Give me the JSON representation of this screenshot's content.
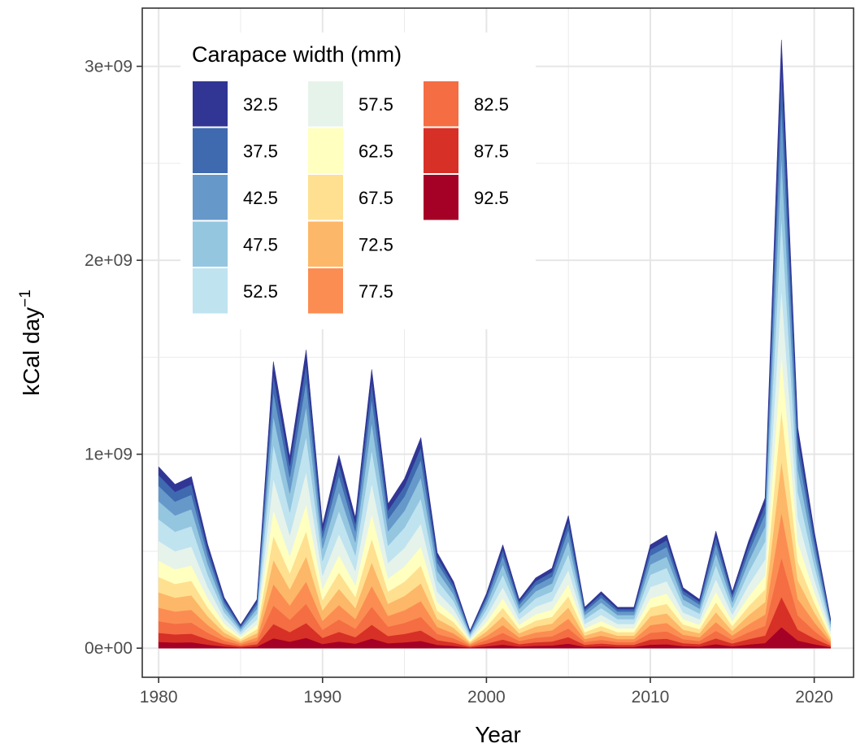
{
  "chart_data": {
    "type": "area",
    "stacked": true,
    "title": "",
    "xlabel": "Year",
    "ylabel": "kCal day",
    "ylabel_superscript": "−1",
    "xlim": [
      1979,
      2022.4
    ],
    "ylim": [
      -150000000.0,
      3300000000.0
    ],
    "x_ticks": [
      1980,
      1990,
      2000,
      2010,
      2020
    ],
    "x_tick_labels": [
      "1980",
      "1990",
      "2000",
      "2010",
      "2020"
    ],
    "y_ticks": [
      0,
      1000000000,
      2000000000,
      3000000000
    ],
    "y_tick_labels": [
      "0e+00",
      "1e+09",
      "2e+09",
      "3e+09"
    ],
    "grid": true,
    "legend": {
      "title": "Carapace width (mm)",
      "placement": "top-left",
      "columns": 3
    },
    "x": [
      1980,
      1981,
      1982,
      1983,
      1984,
      1985,
      1986,
      1987,
      1988,
      1989,
      1990,
      1991,
      1992,
      1993,
      1994,
      1995,
      1996,
      1997,
      1998,
      1999,
      2000,
      2001,
      2002,
      2003,
      2004,
      2005,
      2006,
      2007,
      2008,
      2009,
      2010,
      2011,
      2012,
      2013,
      2014,
      2015,
      2016,
      2017,
      2018,
      2019,
      2020,
      2021
    ],
    "totals": [
      0.93,
      0.84,
      0.88,
      0.53,
      0.26,
      0.12,
      0.25,
      1.47,
      0.98,
      1.53,
      0.63,
      0.99,
      0.67,
      1.43,
      0.74,
      0.87,
      1.08,
      0.49,
      0.34,
      0.09,
      0.28,
      0.53,
      0.25,
      0.36,
      0.41,
      0.68,
      0.21,
      0.29,
      0.21,
      0.21,
      0.53,
      0.58,
      0.31,
      0.25,
      0.6,
      0.29,
      0.55,
      0.77,
      3.12,
      1.13,
      0.6,
      0.15
    ],
    "series": [
      {
        "name": "92.5",
        "color": "#A50026",
        "share": [
          0.035,
          0.035,
          0.035,
          0.035,
          0.035,
          0.035,
          0.035,
          0.035,
          0.035,
          0.035,
          0.035,
          0.035,
          0.035,
          0.035,
          0.035,
          0.035,
          0.035,
          0.035,
          0.035,
          0.035,
          0.035,
          0.035,
          0.035,
          0.035,
          0.035,
          0.035,
          0.035,
          0.035,
          0.035,
          0.035,
          0.035,
          0.035,
          0.035,
          0.035,
          0.035,
          0.035,
          0.035,
          0.035,
          0.035,
          0.035,
          0.035,
          0.035
        ]
      },
      {
        "name": "87.5",
        "color": "#D73027",
        "share": [
          0.05,
          0.05,
          0.05,
          0.05,
          0.05,
          0.05,
          0.05,
          0.05,
          0.05,
          0.05,
          0.05,
          0.05,
          0.05,
          0.05,
          0.05,
          0.05,
          0.05,
          0.05,
          0.05,
          0.05,
          0.05,
          0.05,
          0.05,
          0.05,
          0.05,
          0.05,
          0.05,
          0.05,
          0.05,
          0.05,
          0.05,
          0.05,
          0.05,
          0.05,
          0.05,
          0.05,
          0.05,
          0.05,
          0.05,
          0.05,
          0.05,
          0.05
        ]
      },
      {
        "name": "82.5",
        "color": "#F46D43",
        "share": [
          0.065,
          0.065,
          0.065,
          0.065,
          0.065,
          0.065,
          0.065,
          0.065,
          0.065,
          0.065,
          0.065,
          0.065,
          0.065,
          0.065,
          0.065,
          0.065,
          0.065,
          0.065,
          0.065,
          0.065,
          0.065,
          0.065,
          0.065,
          0.065,
          0.065,
          0.065,
          0.065,
          0.065,
          0.065,
          0.065,
          0.065,
          0.065,
          0.065,
          0.065,
          0.065,
          0.065,
          0.065,
          0.065,
          0.065,
          0.065,
          0.065,
          0.065
        ]
      },
      {
        "name": "77.5",
        "color": "#FB8D52",
        "share": [
          0.075,
          0.075,
          0.075,
          0.075,
          0.075,
          0.075,
          0.075,
          0.075,
          0.075,
          0.075,
          0.075,
          0.075,
          0.075,
          0.075,
          0.075,
          0.075,
          0.075,
          0.075,
          0.075,
          0.075,
          0.075,
          0.075,
          0.075,
          0.075,
          0.075,
          0.075,
          0.075,
          0.075,
          0.075,
          0.075,
          0.075,
          0.075,
          0.075,
          0.075,
          0.075,
          0.075,
          0.075,
          0.075,
          0.075,
          0.075,
          0.075,
          0.075
        ]
      },
      {
        "name": "72.5",
        "color": "#FDB768",
        "share": [
          0.085,
          0.085,
          0.085,
          0.085,
          0.085,
          0.085,
          0.085,
          0.085,
          0.085,
          0.085,
          0.085,
          0.085,
          0.085,
          0.085,
          0.085,
          0.085,
          0.085,
          0.085,
          0.085,
          0.085,
          0.085,
          0.085,
          0.085,
          0.085,
          0.085,
          0.085,
          0.085,
          0.085,
          0.085,
          0.085,
          0.085,
          0.085,
          0.085,
          0.085,
          0.085,
          0.085,
          0.085,
          0.085,
          0.085,
          0.085,
          0.085,
          0.085
        ]
      },
      {
        "name": "67.5",
        "color": "#FEE090",
        "share": [
          0.085,
          0.085,
          0.085,
          0.085,
          0.085,
          0.085,
          0.085,
          0.085,
          0.085,
          0.085,
          0.085,
          0.085,
          0.085,
          0.085,
          0.085,
          0.085,
          0.085,
          0.085,
          0.085,
          0.085,
          0.085,
          0.085,
          0.085,
          0.085,
          0.085,
          0.085,
          0.085,
          0.085,
          0.085,
          0.085,
          0.085,
          0.085,
          0.085,
          0.085,
          0.085,
          0.085,
          0.085,
          0.085,
          0.085,
          0.085,
          0.085,
          0.085
        ]
      },
      {
        "name": "62.5",
        "color": "#FFFFBF",
        "share": [
          0.09,
          0.09,
          0.09,
          0.09,
          0.09,
          0.09,
          0.09,
          0.09,
          0.09,
          0.09,
          0.09,
          0.09,
          0.09,
          0.09,
          0.09,
          0.09,
          0.09,
          0.09,
          0.09,
          0.09,
          0.09,
          0.09,
          0.09,
          0.09,
          0.09,
          0.09,
          0.09,
          0.09,
          0.09,
          0.09,
          0.09,
          0.09,
          0.09,
          0.09,
          0.09,
          0.09,
          0.09,
          0.09,
          0.09,
          0.09,
          0.09,
          0.09
        ]
      },
      {
        "name": "57.5",
        "color": "#E6F3EA",
        "share": [
          0.11,
          0.11,
          0.11,
          0.11,
          0.11,
          0.11,
          0.11,
          0.11,
          0.11,
          0.11,
          0.11,
          0.11,
          0.11,
          0.11,
          0.11,
          0.11,
          0.11,
          0.11,
          0.11,
          0.11,
          0.11,
          0.11,
          0.11,
          0.11,
          0.11,
          0.11,
          0.11,
          0.11,
          0.11,
          0.11,
          0.11,
          0.11,
          0.11,
          0.11,
          0.11,
          0.11,
          0.11,
          0.11,
          0.11,
          0.11,
          0.11,
          0.11
        ]
      },
      {
        "name": "52.5",
        "color": "#C0E3F0",
        "share": [
          0.12,
          0.12,
          0.12,
          0.12,
          0.12,
          0.12,
          0.12,
          0.12,
          0.12,
          0.12,
          0.12,
          0.12,
          0.12,
          0.12,
          0.12,
          0.12,
          0.12,
          0.12,
          0.12,
          0.12,
          0.12,
          0.12,
          0.12,
          0.12,
          0.12,
          0.12,
          0.12,
          0.12,
          0.12,
          0.12,
          0.12,
          0.12,
          0.12,
          0.12,
          0.12,
          0.12,
          0.12,
          0.12,
          0.12,
          0.12,
          0.12,
          0.12
        ]
      },
      {
        "name": "47.5",
        "color": "#94C6E0",
        "share": [
          0.1,
          0.1,
          0.1,
          0.1,
          0.1,
          0.1,
          0.1,
          0.1,
          0.1,
          0.1,
          0.1,
          0.1,
          0.1,
          0.1,
          0.1,
          0.1,
          0.1,
          0.1,
          0.1,
          0.1,
          0.1,
          0.1,
          0.1,
          0.1,
          0.1,
          0.1,
          0.1,
          0.1,
          0.1,
          0.1,
          0.1,
          0.1,
          0.1,
          0.1,
          0.1,
          0.1,
          0.1,
          0.1,
          0.1,
          0.1,
          0.1,
          0.1
        ]
      },
      {
        "name": "42.5",
        "color": "#6699CA",
        "share": [
          0.085,
          0.085,
          0.085,
          0.085,
          0.085,
          0.085,
          0.085,
          0.085,
          0.085,
          0.085,
          0.085,
          0.085,
          0.085,
          0.085,
          0.085,
          0.085,
          0.085,
          0.085,
          0.085,
          0.085,
          0.085,
          0.085,
          0.085,
          0.085,
          0.085,
          0.085,
          0.085,
          0.085,
          0.085,
          0.085,
          0.085,
          0.085,
          0.085,
          0.085,
          0.085,
          0.085,
          0.085,
          0.085,
          0.085,
          0.085,
          0.085,
          0.085
        ]
      },
      {
        "name": "37.5",
        "color": "#3F6AB0",
        "share": [
          0.06,
          0.06,
          0.06,
          0.06,
          0.06,
          0.06,
          0.06,
          0.06,
          0.06,
          0.06,
          0.06,
          0.06,
          0.06,
          0.06,
          0.06,
          0.06,
          0.06,
          0.06,
          0.06,
          0.06,
          0.06,
          0.06,
          0.06,
          0.06,
          0.06,
          0.06,
          0.06,
          0.06,
          0.06,
          0.06,
          0.06,
          0.06,
          0.06,
          0.06,
          0.06,
          0.06,
          0.06,
          0.06,
          0.06,
          0.06,
          0.06,
          0.06
        ]
      },
      {
        "name": "32.5",
        "color": "#313695",
        "share": [
          0.045,
          0.045,
          0.045,
          0.045,
          0.045,
          0.045,
          0.045,
          0.045,
          0.045,
          0.045,
          0.045,
          0.045,
          0.045,
          0.045,
          0.045,
          0.045,
          0.045,
          0.045,
          0.045,
          0.045,
          0.045,
          0.045,
          0.045,
          0.045,
          0.045,
          0.045,
          0.045,
          0.045,
          0.045,
          0.045,
          0.045,
          0.045,
          0.045,
          0.045,
          0.045,
          0.045,
          0.045,
          0.045,
          0.045,
          0.045,
          0.045,
          0.045
        ]
      }
    ],
    "totals_unit": 1000000000,
    "legend_order": [
      "32.5",
      "37.5",
      "42.5",
      "47.5",
      "52.5",
      "57.5",
      "62.5",
      "67.5",
      "72.5",
      "77.5",
      "82.5",
      "87.5",
      "92.5"
    ]
  }
}
